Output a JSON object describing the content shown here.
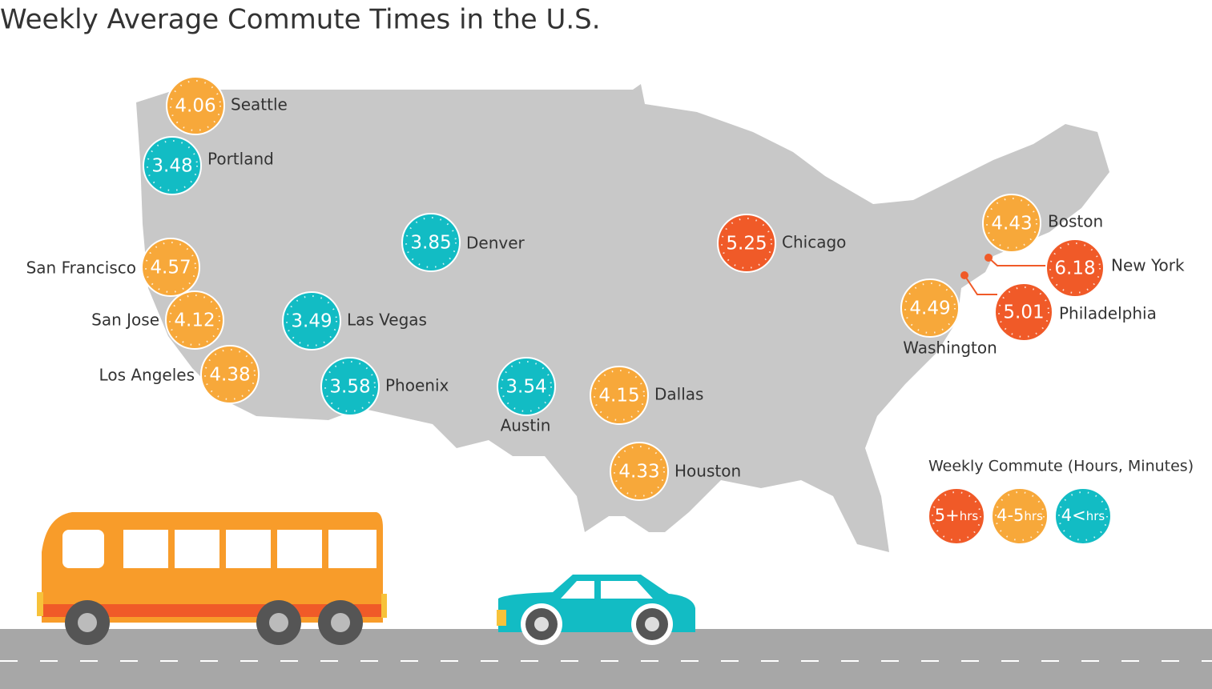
{
  "title": "Weekly Average Commute Times in the U.S.",
  "cities": [
    {
      "name": "Seattle",
      "value": "4.06",
      "color": "#f7a83a"
    },
    {
      "name": "Portland",
      "value": "3.48",
      "color": "#12bcc4"
    },
    {
      "name": "San Francisco",
      "value": "4.57",
      "color": "#f7a83a"
    },
    {
      "name": "San Jose",
      "value": "4.12",
      "color": "#f7a83a"
    },
    {
      "name": "Los Angeles",
      "value": "4.38",
      "color": "#f7a83a"
    },
    {
      "name": "Las Vegas",
      "value": "3.49",
      "color": "#12bcc4"
    },
    {
      "name": "Phoenix",
      "value": "3.58",
      "color": "#12bcc4"
    },
    {
      "name": "Denver",
      "value": "3.85",
      "color": "#12bcc4"
    },
    {
      "name": "Austin",
      "value": "3.54",
      "color": "#12bcc4"
    },
    {
      "name": "Dallas",
      "value": "4.15",
      "color": "#f7a83a"
    },
    {
      "name": "Houston",
      "value": "4.33",
      "color": "#f7a83a"
    },
    {
      "name": "Chicago",
      "value": "5.25",
      "color": "#f05a28"
    },
    {
      "name": "Boston",
      "value": "4.43",
      "color": "#f7a83a"
    },
    {
      "name": "New York",
      "value": "6.18",
      "color": "#f05a28"
    },
    {
      "name": "Philadelphia",
      "value": "5.01",
      "color": "#f05a28"
    },
    {
      "name": "Washington",
      "value": "4.49",
      "color": "#f7a83a"
    }
  ],
  "legend": {
    "title": "Weekly Commute (Hours, Minutes)",
    "items": [
      {
        "main": "5+",
        "unit": "hrs",
        "color": "#f05a28"
      },
      {
        "main": "4-5",
        "unit": "hrs",
        "color": "#f7a83a"
      },
      {
        "main": "4<",
        "unit": "hrs",
        "color": "#12bcc4"
      }
    ]
  }
}
